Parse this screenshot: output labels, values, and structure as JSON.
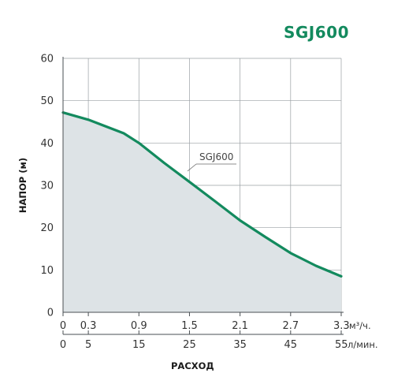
{
  "chart_data": {
    "type": "area",
    "title": "SGJ600",
    "ylabel": "НАПОР (м)",
    "xlabel": "РАСХОД",
    "ylim": [
      0,
      60
    ],
    "y_ticks": [
      "0",
      "10",
      "20",
      "30",
      "40",
      "50",
      "60"
    ],
    "x_axis_primary": {
      "unit": "м³/ч.",
      "ticks": [
        "0",
        "0.3",
        "0.9",
        "1.5",
        "2.1",
        "2.7",
        "3.3"
      ]
    },
    "x_axis_secondary": {
      "unit": "л/мин.",
      "ticks": [
        "0",
        "5",
        "15",
        "25",
        "35",
        "45",
        "55"
      ],
      "xlim": [
        0,
        55
      ]
    },
    "grid": true,
    "series": [
      {
        "name": "SGJ600",
        "color": "#138a5e",
        "fill": "#dde3e6",
        "x": [
          0,
          5,
          12,
          15,
          20,
          25,
          30,
          35,
          40,
          45,
          50,
          55
        ],
        "y": [
          47.2,
          45.5,
          42.3,
          40,
          35.3,
          30.8,
          26.3,
          21.7,
          17.8,
          14,
          11,
          8.5
        ]
      }
    ]
  }
}
